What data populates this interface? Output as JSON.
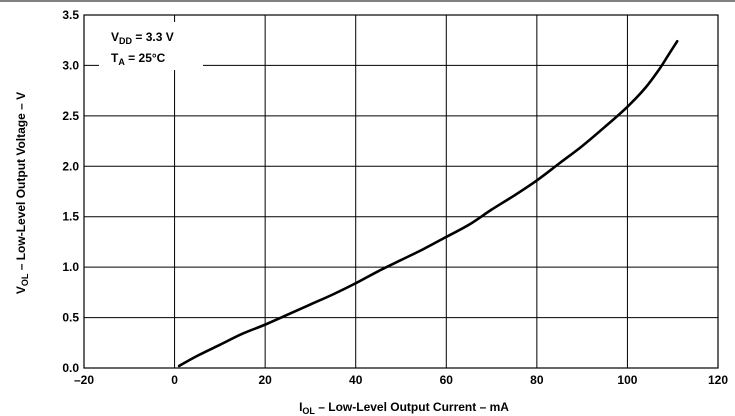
{
  "chart_data": {
    "type": "line",
    "title": "",
    "annotation": {
      "line1": {
        "main": "V",
        "sub": "DD",
        "rest": " = 3.3 V"
      },
      "line2": {
        "main": "T",
        "sub": "A",
        "rest": " = 25°C"
      }
    },
    "xlabel": {
      "main": "I",
      "sub": "OL",
      "rest": " – Low-Level Output Current – mA"
    },
    "ylabel": {
      "main": "V",
      "sub": "OL",
      "rest": " – Low-Level Output Voltage – V"
    },
    "xlim": [
      -20,
      120
    ],
    "ylim": [
      0.0,
      3.5
    ],
    "xticks": [
      -20,
      0,
      20,
      40,
      60,
      80,
      100,
      120
    ],
    "yticks": [
      0.0,
      0.5,
      1.0,
      1.5,
      2.0,
      2.5,
      3.0,
      3.5
    ],
    "xtick_labels": [
      "–20",
      "0",
      "20",
      "40",
      "60",
      "80",
      "100",
      "120"
    ],
    "ytick_labels": [
      "0.0",
      "0.5",
      "1.0",
      "1.5",
      "2.0",
      "2.5",
      "3.0",
      "3.5"
    ],
    "grid": true,
    "series": [
      {
        "x": [
          1,
          5,
          10,
          15,
          20,
          25,
          30,
          35,
          40,
          45,
          50,
          55,
          60,
          65,
          70,
          75,
          80,
          85,
          90,
          95,
          100,
          104,
          107,
          109,
          111
        ],
        "y": [
          0.02,
          0.12,
          0.23,
          0.34,
          0.43,
          0.53,
          0.63,
          0.73,
          0.84,
          0.96,
          1.07,
          1.18,
          1.3,
          1.42,
          1.57,
          1.71,
          1.86,
          2.03,
          2.2,
          2.39,
          2.59,
          2.78,
          2.96,
          3.1,
          3.24
        ]
      }
    ]
  }
}
